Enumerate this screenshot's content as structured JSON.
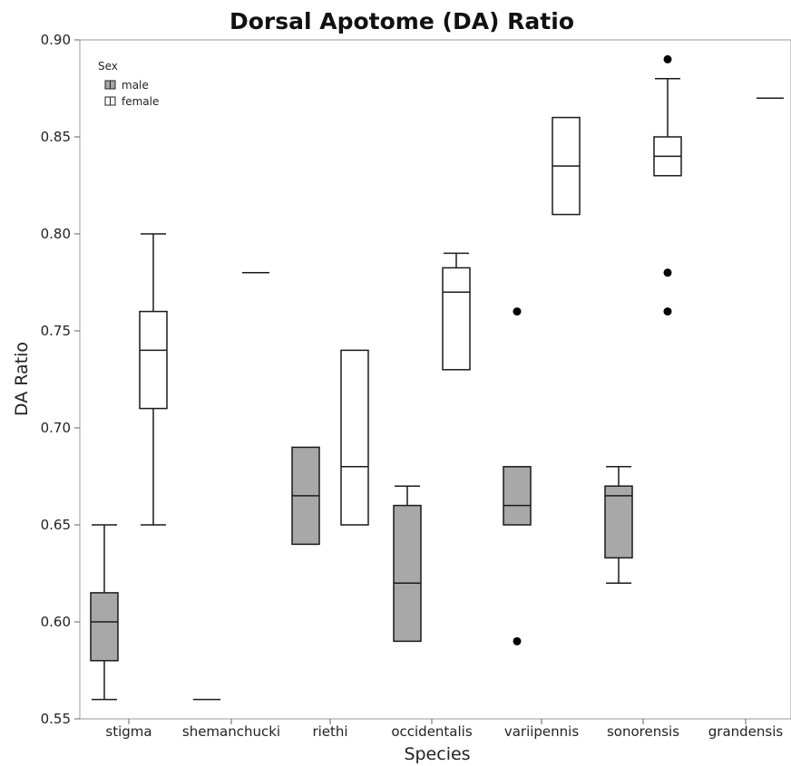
{
  "chart_data": {
    "type": "box",
    "title": "Dorsal Apotome (DA) Ratio",
    "xlabel": "Species",
    "ylabel": "DA Ratio",
    "ylim": [
      0.55,
      0.9
    ],
    "yticks": [
      0.55,
      0.6,
      0.65,
      0.7,
      0.75,
      0.8,
      0.85,
      0.9
    ],
    "ytick_labels": [
      "0.55",
      "0.60",
      "0.65",
      "0.70",
      "0.75",
      "0.80",
      "0.85",
      "0.90"
    ],
    "categories": [
      "stigma",
      "shemanchucki",
      "riethi",
      "occidentalis",
      "variipennis",
      "sonorensis",
      "grandensis"
    ],
    "legend": {
      "title": "Sex",
      "position": "top-left",
      "entries": [
        {
          "label": "male",
          "color": "#a8a8a8"
        },
        {
          "label": "female",
          "color": "#ffffff"
        }
      ]
    },
    "series": [
      {
        "name": "male",
        "color": "#a8a8a8",
        "boxes": [
          {
            "category": "stigma",
            "whisker_low": 0.56,
            "q1": 0.58,
            "median": 0.6,
            "q3": 0.615,
            "whisker_high": 0.65,
            "outliers": []
          },
          {
            "category": "shemanchucki",
            "whisker_low": 0.56,
            "q1": 0.56,
            "median": 0.56,
            "q3": 0.56,
            "whisker_high": 0.56,
            "outliers": []
          },
          {
            "category": "riethi",
            "whisker_low": 0.64,
            "q1": 0.64,
            "median": 0.665,
            "q3": 0.69,
            "whisker_high": 0.69,
            "outliers": []
          },
          {
            "category": "occidentalis",
            "whisker_low": 0.59,
            "q1": 0.59,
            "median": 0.62,
            "q3": 0.66,
            "whisker_high": 0.67,
            "outliers": []
          },
          {
            "category": "variipennis",
            "whisker_low": 0.65,
            "q1": 0.65,
            "median": 0.66,
            "q3": 0.68,
            "whisker_high": 0.68,
            "outliers": [
              0.59,
              0.76
            ]
          },
          {
            "category": "sonorensis",
            "whisker_low": 0.62,
            "q1": 0.633,
            "median": 0.665,
            "q3": 0.67,
            "whisker_high": 0.68,
            "outliers": []
          }
        ]
      },
      {
        "name": "female",
        "color": "#ffffff",
        "boxes": [
          {
            "category": "stigma",
            "whisker_low": 0.65,
            "q1": 0.71,
            "median": 0.74,
            "q3": 0.76,
            "whisker_high": 0.8,
            "outliers": []
          },
          {
            "category": "shemanchucki",
            "whisker_low": 0.78,
            "q1": 0.78,
            "median": 0.78,
            "q3": 0.78,
            "whisker_high": 0.78,
            "outliers": []
          },
          {
            "category": "riethi",
            "whisker_low": 0.65,
            "q1": 0.65,
            "median": 0.68,
            "q3": 0.74,
            "whisker_high": 0.74,
            "outliers": []
          },
          {
            "category": "occidentalis",
            "whisker_low": 0.73,
            "q1": 0.73,
            "median": 0.77,
            "q3": 0.7825,
            "whisker_high": 0.79,
            "outliers": []
          },
          {
            "category": "variipennis",
            "whisker_low": 0.81,
            "q1": 0.81,
            "median": 0.835,
            "q3": 0.86,
            "whisker_high": 0.86,
            "outliers": []
          },
          {
            "category": "sonorensis",
            "whisker_low": 0.83,
            "q1": 0.83,
            "median": 0.84,
            "q3": 0.85,
            "whisker_high": 0.88,
            "outliers": [
              0.76,
              0.78,
              0.89
            ]
          },
          {
            "category": "grandensis",
            "whisker_low": 0.87,
            "q1": 0.87,
            "median": 0.87,
            "q3": 0.87,
            "whisker_high": 0.87,
            "outliers": []
          }
        ]
      }
    ]
  }
}
